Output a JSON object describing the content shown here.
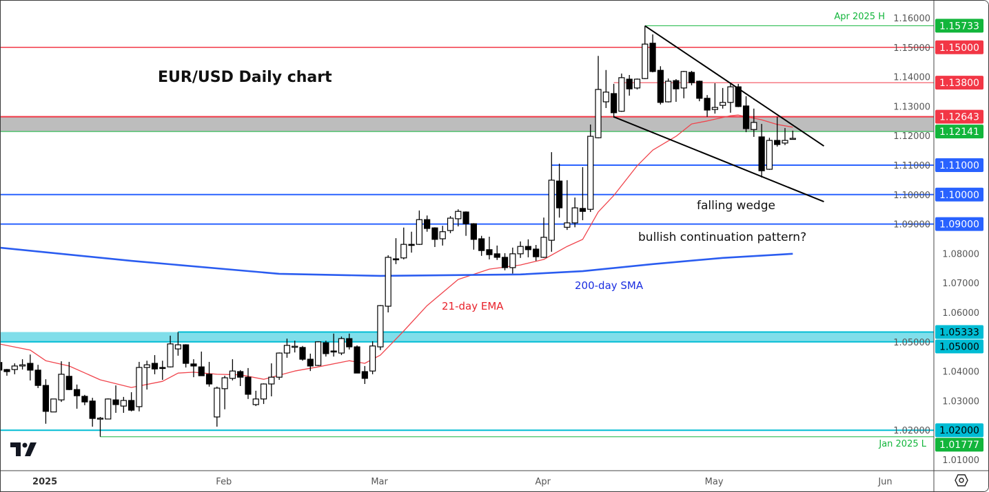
{
  "chart_data": {
    "type": "candlestick",
    "title": "EUR/USD Daily chart",
    "ylim": [
      1.005,
      1.166
    ],
    "y_ticks": [
      "1.01000",
      "1.02000",
      "1.03000",
      "1.04000",
      "1.05000",
      "1.06000",
      "1.07000",
      "1.08000",
      "1.09000",
      "1.10000",
      "1.11000",
      "1.12000",
      "1.13000",
      "1.14000",
      "1.15000",
      "1.16000"
    ],
    "x_ticks": [
      {
        "label": "2025",
        "date": "2025-01-01",
        "bold": true
      },
      {
        "label": "Feb",
        "date": "2025-02-03"
      },
      {
        "label": "Mar",
        "date": "2025-03-03"
      },
      {
        "label": "Apr",
        "date": "2025-04-01"
      },
      {
        "label": "May",
        "date": "2025-05-01"
      },
      {
        "label": "Jun",
        "date": "2025-06-02"
      }
    ],
    "candle_fields": [
      "date",
      "open",
      "high",
      "low",
      "close"
    ],
    "candles": [
      [
        "2024-12-25",
        1.043,
        1.0434,
        1.0397,
        1.0404
      ],
      [
        "2024-12-26",
        1.0406,
        1.0408,
        1.0385,
        1.0399
      ],
      [
        "2024-12-27",
        1.0406,
        1.0427,
        1.039,
        1.0418
      ],
      [
        "2024-12-30",
        1.0418,
        1.0441,
        1.0406,
        1.0422
      ],
      [
        "2024-12-31",
        1.0427,
        1.0457,
        1.0369,
        1.0404
      ],
      [
        "2025-01-01",
        1.0404,
        1.0422,
        1.0343,
        1.0352
      ],
      [
        "2025-01-02",
        1.0352,
        1.0373,
        1.0222,
        1.0264
      ],
      [
        "2025-01-03",
        1.0262,
        1.0306,
        1.0262,
        1.0306
      ],
      [
        "2025-01-06",
        1.0303,
        1.0434,
        1.0296,
        1.039
      ],
      [
        "2025-01-07",
        1.0383,
        1.0432,
        1.0336,
        1.0338
      ],
      [
        "2025-01-08",
        1.0338,
        1.0355,
        1.0273,
        1.0317
      ],
      [
        "2025-01-09",
        1.0315,
        1.032,
        1.0285,
        1.0296
      ],
      [
        "2025-01-10",
        1.0299,
        1.031,
        1.0212,
        1.024
      ],
      [
        "2025-01-13",
        1.024,
        1.0245,
        1.0178,
        1.0241
      ],
      [
        "2025-01-14",
        1.0238,
        1.0308,
        1.0238,
        1.0306
      ],
      [
        "2025-01-15",
        1.0303,
        1.0352,
        1.0259,
        1.0287
      ],
      [
        "2025-01-16",
        1.0282,
        1.0313,
        1.0259,
        1.0301
      ],
      [
        "2025-01-17",
        1.0301,
        1.0329,
        1.0264,
        1.0268
      ],
      [
        "2025-01-20",
        1.028,
        1.0432,
        1.0264,
        1.0413
      ],
      [
        "2025-01-21",
        1.0413,
        1.0436,
        1.0338,
        1.0422
      ],
      [
        "2025-01-22",
        1.0427,
        1.0455,
        1.039,
        1.0408
      ],
      [
        "2025-01-23",
        1.0413,
        1.0436,
        1.0371,
        1.0411
      ],
      [
        "2025-01-24",
        1.0415,
        1.0521,
        1.0413,
        1.0493
      ],
      [
        "2025-01-27",
        1.0476,
        1.0533,
        1.0453,
        1.049
      ],
      [
        "2025-01-28",
        1.049,
        1.0492,
        1.0413,
        1.0427
      ],
      [
        "2025-01-29",
        1.0425,
        1.0441,
        1.038,
        1.0418
      ],
      [
        "2025-01-30",
        1.0415,
        1.0467,
        1.0385,
        1.0385
      ],
      [
        "2025-01-31",
        1.039,
        1.0432,
        1.0348,
        1.0357
      ],
      [
        "2025-02-03",
        1.0245,
        1.0348,
        1.0212,
        1.0343
      ],
      [
        "2025-02-04",
        1.0341,
        1.0385,
        1.0271,
        1.0378
      ],
      [
        "2025-02-05",
        1.0376,
        1.0441,
        1.0369,
        1.0401
      ],
      [
        "2025-02-06",
        1.0399,
        1.0404,
        1.035,
        1.038
      ],
      [
        "2025-02-07",
        1.038,
        1.0411,
        1.0306,
        1.0322
      ],
      [
        "2025-02-10",
        1.0287,
        1.0334,
        1.0282,
        1.0306
      ],
      [
        "2025-02-11",
        1.0306,
        1.0359,
        1.0289,
        1.0357
      ],
      [
        "2025-02-12",
        1.0357,
        1.0427,
        1.0315,
        1.038
      ],
      [
        "2025-02-13",
        1.038,
        1.0464,
        1.0371,
        1.0462
      ],
      [
        "2025-02-14",
        1.0462,
        1.0511,
        1.0446,
        1.0488
      ],
      [
        "2025-02-17",
        1.0483,
        1.0504,
        1.0464,
        1.0485
      ],
      [
        "2025-02-18",
        1.0481,
        1.0486,
        1.0436,
        1.0441
      ],
      [
        "2025-02-19",
        1.0441,
        1.046,
        1.0401,
        1.0418
      ],
      [
        "2025-02-20",
        1.042,
        1.0502,
        1.0418,
        1.05
      ],
      [
        "2025-02-21",
        1.0497,
        1.0504,
        1.045,
        1.046
      ],
      [
        "2025-02-24",
        1.0469,
        1.0528,
        1.045,
        1.0467
      ],
      [
        "2025-02-25",
        1.0462,
        1.0518,
        1.0455,
        1.0511
      ],
      [
        "2025-02-26",
        1.0511,
        1.0528,
        1.0474,
        1.0483
      ],
      [
        "2025-02-27",
        1.0483,
        1.0488,
        1.0394,
        1.0394
      ],
      [
        "2025-02-28",
        1.0399,
        1.0418,
        1.0357,
        1.0376
      ],
      [
        "2025-03-03",
        1.0401,
        1.0502,
        1.039,
        1.0486
      ],
      [
        "2025-03-04",
        1.0483,
        1.0625,
        1.0472,
        1.0623
      ],
      [
        "2025-03-05",
        1.0621,
        1.0794,
        1.06,
        1.0787
      ],
      [
        "2025-03-06",
        1.0782,
        1.0852,
        1.0764,
        1.078
      ],
      [
        "2025-03-07",
        1.0785,
        1.0888,
        1.078,
        1.0831
      ],
      [
        "2025-03-10",
        1.0831,
        1.0874,
        1.0803,
        1.0829
      ],
      [
        "2025-03-11",
        1.0831,
        1.0946,
        1.0829,
        1.0915
      ],
      [
        "2025-03-12",
        1.0915,
        1.0929,
        1.0874,
        1.0885
      ],
      [
        "2025-03-13",
        1.0887,
        1.0889,
        1.0822,
        1.0848
      ],
      [
        "2025-03-14",
        1.085,
        1.0894,
        1.0827,
        1.0874
      ],
      [
        "2025-03-17",
        1.0878,
        1.0927,
        1.0869,
        1.092
      ],
      [
        "2025-03-18",
        1.0918,
        1.095,
        1.0892,
        1.0943
      ],
      [
        "2025-03-19",
        1.0941,
        1.0943,
        1.086,
        1.0901
      ],
      [
        "2025-03-20",
        1.0901,
        1.0903,
        1.0813,
        1.0848
      ],
      [
        "2025-03-21",
        1.085,
        1.086,
        1.0792,
        1.081
      ],
      [
        "2025-03-24",
        1.0813,
        1.0857,
        1.078,
        1.0796
      ],
      [
        "2025-03-25",
        1.0799,
        1.0827,
        1.0778,
        1.0787
      ],
      [
        "2025-03-26",
        1.0787,
        1.0801,
        1.0743,
        1.0752
      ],
      [
        "2025-03-27",
        1.0752,
        1.082,
        1.0732,
        1.0799
      ],
      [
        "2025-03-28",
        1.0799,
        1.0841,
        1.0785,
        1.0824
      ],
      [
        "2025-03-31",
        1.0824,
        1.0848,
        1.0787,
        1.0813
      ],
      [
        "2025-04-01",
        1.0815,
        1.0829,
        1.0775,
        1.0789
      ],
      [
        "2025-04-02",
        1.0787,
        1.0922,
        1.0785,
        1.0855
      ],
      [
        "2025-04-03",
        1.0845,
        1.1144,
        1.0806,
        1.1049
      ],
      [
        "2025-04-04",
        1.1046,
        1.1105,
        1.0922,
        1.0955
      ],
      [
        "2025-04-07",
        1.0889,
        1.1049,
        1.088,
        1.0904
      ],
      [
        "2025-04-08",
        1.0904,
        1.099,
        1.0889,
        1.0955
      ],
      [
        "2025-04-09",
        1.0953,
        1.1093,
        1.0913,
        1.0943
      ],
      [
        "2025-04-10",
        1.095,
        1.1238,
        1.0941,
        1.1198
      ],
      [
        "2025-04-11",
        1.1193,
        1.1471,
        1.1191,
        1.1357
      ],
      [
        "2025-04-14",
        1.1315,
        1.1423,
        1.1294,
        1.1348
      ],
      [
        "2025-04-15",
        1.1343,
        1.1376,
        1.1261,
        1.1278
      ],
      [
        "2025-04-16",
        1.1283,
        1.1411,
        1.1281,
        1.1397
      ],
      [
        "2025-04-17",
        1.1392,
        1.1406,
        1.1336,
        1.1359
      ],
      [
        "2025-04-18",
        1.1362,
        1.1394,
        1.1357,
        1.1392
      ],
      [
        "2025-04-21",
        1.1394,
        1.1573,
        1.1392,
        1.1511
      ],
      [
        "2025-04-22",
        1.1514,
        1.1544,
        1.1415,
        1.1418
      ],
      [
        "2025-04-23",
        1.1422,
        1.1436,
        1.1306,
        1.1313
      ],
      [
        "2025-04-24",
        1.1315,
        1.1394,
        1.1313,
        1.1385
      ],
      [
        "2025-04-25",
        1.1387,
        1.1392,
        1.1315,
        1.1359
      ],
      [
        "2025-04-28",
        1.1362,
        1.142,
        1.1327,
        1.1418
      ],
      [
        "2025-04-29",
        1.1415,
        1.142,
        1.1371,
        1.138
      ],
      [
        "2025-04-30",
        1.1385,
        1.1387,
        1.1317,
        1.1327
      ],
      [
        "2025-05-01",
        1.1327,
        1.1338,
        1.1264,
        1.1287
      ],
      [
        "2025-05-02",
        1.1289,
        1.1378,
        1.1275,
        1.1296
      ],
      [
        "2025-05-05",
        1.1303,
        1.1362,
        1.1292,
        1.1313
      ],
      [
        "2025-05-06",
        1.1313,
        1.1378,
        1.1278,
        1.1366
      ],
      [
        "2025-05-07",
        1.1366,
        1.1376,
        1.1297,
        1.1299
      ],
      [
        "2025-05-08",
        1.1301,
        1.1334,
        1.1212,
        1.1224
      ],
      [
        "2025-05-09",
        1.1221,
        1.1292,
        1.1196,
        1.1245
      ],
      [
        "2025-05-12",
        1.1196,
        1.124,
        1.1058,
        1.1081
      ],
      [
        "2025-05-13",
        1.1086,
        1.1193,
        1.1084,
        1.1184
      ],
      [
        "2025-05-14",
        1.1184,
        1.1264,
        1.1163,
        1.117
      ],
      [
        "2025-05-15",
        1.1175,
        1.1226,
        1.1168,
        1.1184
      ],
      [
        "2025-05-16",
        1.1189,
        1.1217,
        1.1189,
        1.1191
      ]
    ],
    "indicators": [
      {
        "name": "21-day EMA",
        "color": "#f0444c",
        "points": [
          [
            "2024-12-25",
            1.0493
          ],
          [
            "2024-12-31",
            1.0472
          ],
          [
            "2025-01-02",
            1.0436
          ],
          [
            "2025-01-07",
            1.0418
          ],
          [
            "2025-01-13",
            1.0371
          ],
          [
            "2025-01-17",
            1.0345
          ],
          [
            "2025-01-23",
            1.0366
          ],
          [
            "2025-01-27",
            1.0394
          ],
          [
            "2025-01-29",
            1.0397
          ],
          [
            "2025-02-03",
            1.039
          ],
          [
            "2025-02-06",
            1.0388
          ],
          [
            "2025-02-11",
            1.0373
          ],
          [
            "2025-02-17",
            1.0401
          ],
          [
            "2025-02-20",
            1.0415
          ],
          [
            "2025-02-26",
            1.0436
          ],
          [
            "2025-02-28",
            1.0427
          ],
          [
            "2025-03-04",
            1.0455
          ],
          [
            "2025-03-07",
            1.0537
          ],
          [
            "2025-03-12",
            1.0623
          ],
          [
            "2025-03-18",
            1.0712
          ],
          [
            "2025-03-24",
            1.0747
          ],
          [
            "2025-03-28",
            1.0761
          ],
          [
            "2025-04-02",
            1.078
          ],
          [
            "2025-04-07",
            1.0824
          ],
          [
            "2025-04-09",
            1.0848
          ],
          [
            "2025-04-11",
            1.0941
          ],
          [
            "2025-04-15",
            1.0997
          ],
          [
            "2025-04-18",
            1.1098
          ],
          [
            "2025-04-22",
            1.1151
          ],
          [
            "2025-04-25",
            1.1198
          ],
          [
            "2025-04-29",
            1.124
          ],
          [
            "2025-05-01",
            1.125
          ],
          [
            "2025-05-06",
            1.1268
          ],
          [
            "2025-05-07",
            1.127
          ],
          [
            "2025-05-12",
            1.1254
          ],
          [
            "2025-05-14",
            1.1238
          ],
          [
            "2025-05-16",
            1.1229
          ]
        ]
      },
      {
        "name": "200-day SMA",
        "color": "#2a5cf0",
        "points": [
          [
            "2024-12-25",
            1.082
          ],
          [
            "2025-01-17",
            1.0775
          ],
          [
            "2025-02-13",
            1.0731
          ],
          [
            "2025-03-04",
            1.0724
          ],
          [
            "2025-03-28",
            1.0729
          ],
          [
            "2025-04-09",
            1.074
          ],
          [
            "2025-04-22",
            1.0764
          ],
          [
            "2025-05-05",
            1.0785
          ],
          [
            "2025-05-16",
            1.0799
          ]
        ]
      }
    ],
    "zones": [
      {
        "from": 1.12141,
        "to": 1.12643,
        "color": "#bdbdbd"
      },
      {
        "from": 1.05,
        "to": 1.05333,
        "color": "#80deea"
      }
    ],
    "levels": [
      {
        "price": 1.15733,
        "label": "1.15733",
        "color": "#12b53b",
        "text_color": "#ffffff",
        "start": "2025-04-21",
        "width": 1
      },
      {
        "price": 1.15,
        "label": "1.15000",
        "color": "#f23645",
        "text_color": "#ffffff",
        "width": 1.5
      },
      {
        "price": 1.138,
        "label": "1.13800",
        "color": "#f23645",
        "text_color": "#ffffff",
        "start": "2025-04-15",
        "width": 1
      },
      {
        "price": 1.12643,
        "label": "1.12643",
        "color": "#f23645",
        "text_color": "#ffffff",
        "width": 2
      },
      {
        "price": 1.12141,
        "label": "1.12141",
        "color": "#12b53b",
        "text_color": "#ffffff",
        "width": 1
      },
      {
        "price": 1.11,
        "label": "1.11000",
        "color": "#2962ff",
        "text_color": "#ffffff",
        "start": "2025-04-03",
        "width": 2
      },
      {
        "price": 1.1,
        "label": "1.10000",
        "color": "#2962ff",
        "text_color": "#ffffff",
        "width": 2
      },
      {
        "price": 1.09,
        "label": "1.09000",
        "color": "#2962ff",
        "text_color": "#ffffff",
        "width": 2
      },
      {
        "price": 1.05333,
        "label": "1.05333",
        "color": "#00bcd4",
        "text_color": "#000000",
        "start": "2025-01-27",
        "width": 2
      },
      {
        "price": 1.05,
        "label": "1.05000",
        "color": "#00bcd4",
        "text_color": "#000000",
        "width": 2
      },
      {
        "price": 1.02,
        "label": "1.02000",
        "color": "#00bcd4",
        "text_color": "#000000",
        "width": 2
      },
      {
        "price": 1.01777,
        "label": "1.01777",
        "color": "#12b53b",
        "text_color": "#ffffff",
        "start": "2025-01-13",
        "width": 1
      }
    ],
    "trendlines": [
      {
        "from": [
          "2025-04-21",
          1.1573
        ],
        "to": [
          "2025-05-22",
          1.1165
        ]
      },
      {
        "from": [
          "2025-04-15",
          1.1264
        ],
        "to": [
          "2025-05-22",
          1.0976
        ]
      }
    ],
    "annotations": {
      "ema_label": "21-day EMA",
      "sma_label": "200-day SMA",
      "wedge_label": "falling wedge",
      "pattern_label": "bullish continuation pattern?",
      "high_note": "Apr 2025 H",
      "low_note": "Jan 2025 L"
    },
    "colors": {
      "up": "#ffffff",
      "down": "#000000",
      "outline": "#000000"
    }
  },
  "icons": {
    "logo": "tradingview-logo",
    "settings": "settings-hexagon-icon"
  }
}
